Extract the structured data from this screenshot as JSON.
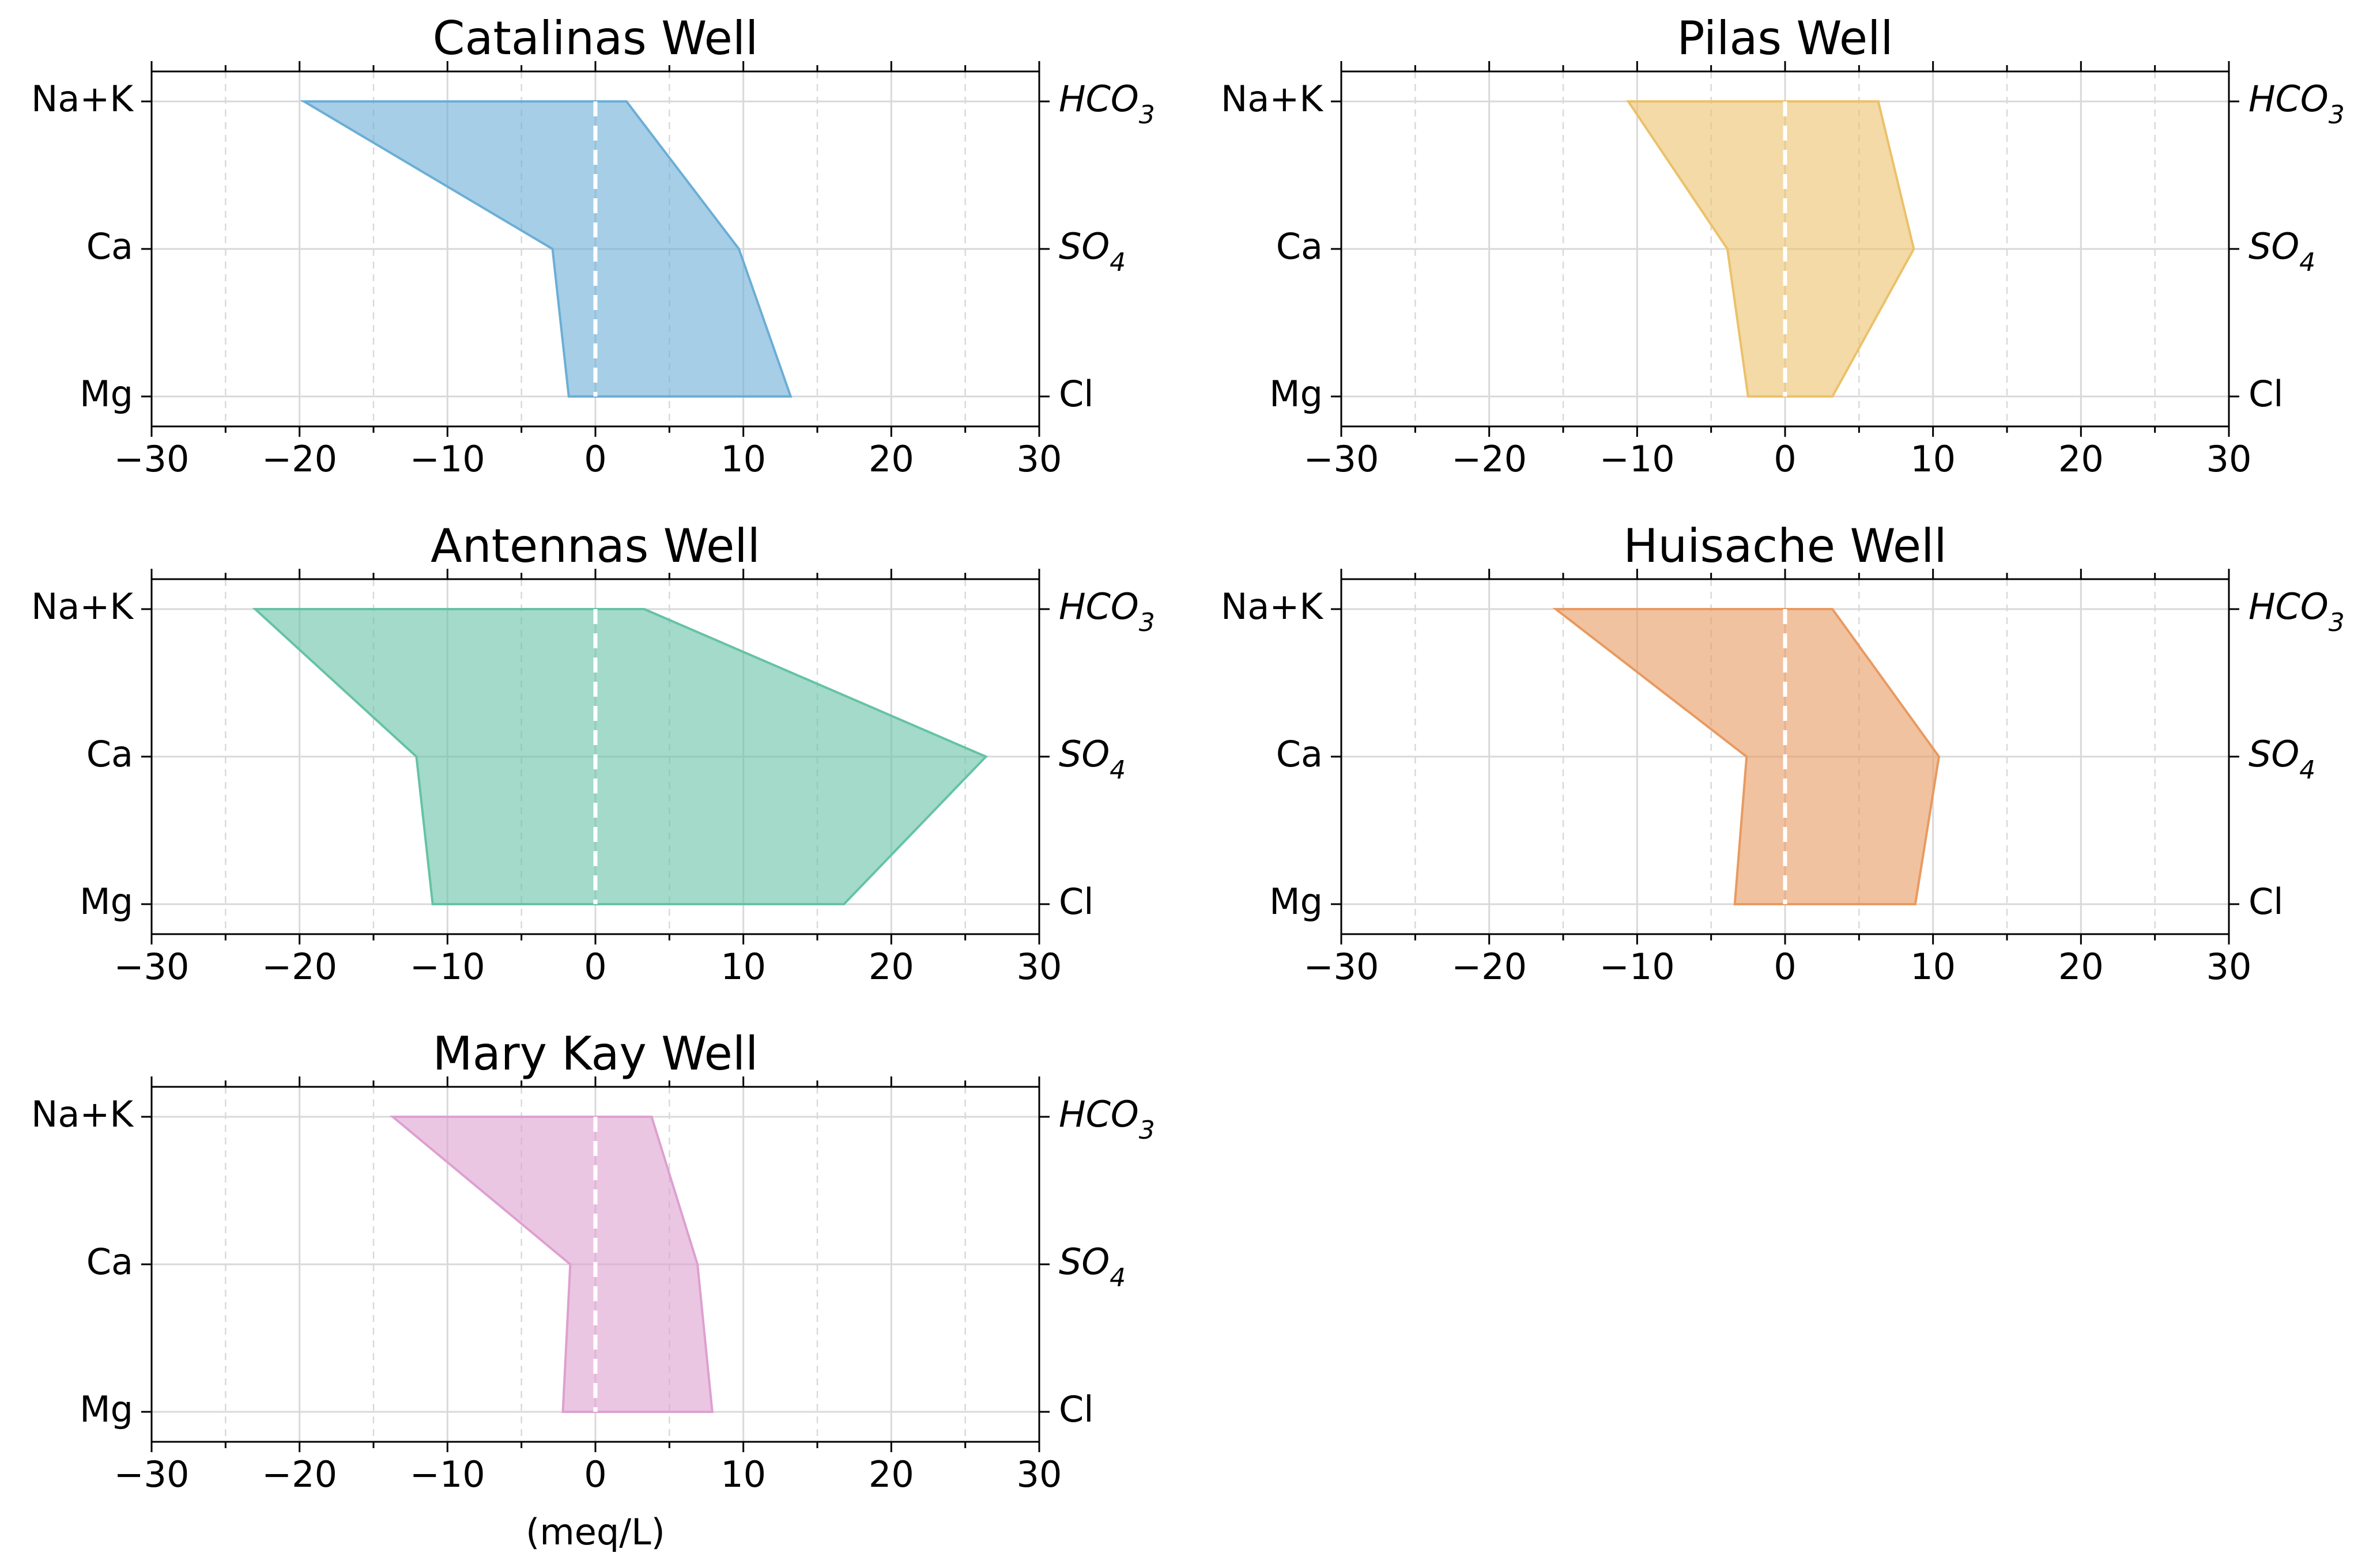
{
  "chart_data": [
    {
      "type": "area",
      "title": "Catalinas Well",
      "color": "#6baed6",
      "xlim": [
        -30,
        30
      ],
      "x_ticks": [
        -30,
        -20,
        -10,
        0,
        10,
        20,
        30
      ],
      "x_tick_labels": [
        "−30",
        "−20",
        "−10",
        "0",
        "10",
        "20",
        "30"
      ],
      "xlabel": "",
      "cations": [
        {
          "label": "Na+K",
          "value": -19.7
        },
        {
          "label": "Ca",
          "value": -2.9
        },
        {
          "label": "Mg",
          "value": -1.8
        }
      ],
      "anions": [
        {
          "label": "HCO3",
          "value": 2.1
        },
        {
          "label": "SO4",
          "value": 9.7
        },
        {
          "label": "Cl",
          "value": 13.2
        }
      ]
    },
    {
      "type": "area",
      "title": "Pilas Well",
      "color": "#ebc16a",
      "xlim": [
        -30,
        30
      ],
      "x_ticks": [
        -30,
        -20,
        -10,
        0,
        10,
        20,
        30
      ],
      "x_tick_labels": [
        "−30",
        "−20",
        "−10",
        "0",
        "10",
        "20",
        "30"
      ],
      "xlabel": "",
      "cations": [
        {
          "label": "Na+K",
          "value": -10.6
        },
        {
          "label": "Ca",
          "value": -3.9
        },
        {
          "label": "Mg",
          "value": -2.5
        }
      ],
      "anions": [
        {
          "label": "HCO3",
          "value": 6.3
        },
        {
          "label": "SO4",
          "value": 8.7
        },
        {
          "label": "Cl",
          "value": 3.2
        }
      ]
    },
    {
      "type": "area",
      "title": "Antennas Well",
      "color": "#66c2a5",
      "xlim": [
        -30,
        30
      ],
      "x_ticks": [
        -30,
        -20,
        -10,
        0,
        10,
        20,
        30
      ],
      "x_tick_labels": [
        "−30",
        "−20",
        "−10",
        "0",
        "10",
        "20",
        "30"
      ],
      "xlabel": "",
      "cations": [
        {
          "label": "Na+K",
          "value": -23.0
        },
        {
          "label": "Ca",
          "value": -12.1
        },
        {
          "label": "Mg",
          "value": -11.0
        }
      ],
      "anions": [
        {
          "label": "HCO3",
          "value": 3.3
        },
        {
          "label": "SO4",
          "value": 26.4
        },
        {
          "label": "Cl",
          "value": 16.8
        }
      ]
    },
    {
      "type": "area",
      "title": "Huisache Well",
      "color": "#e89a60",
      "xlim": [
        -30,
        30
      ],
      "x_ticks": [
        -30,
        -20,
        -10,
        0,
        10,
        20,
        30
      ],
      "x_tick_labels": [
        "−30",
        "−20",
        "−10",
        "0",
        "10",
        "20",
        "30"
      ],
      "xlabel": "",
      "cations": [
        {
          "label": "Na+K",
          "value": -15.5
        },
        {
          "label": "Ca",
          "value": -2.6
        },
        {
          "label": "Mg",
          "value": -3.4
        }
      ],
      "anions": [
        {
          "label": "HCO3",
          "value": 3.2
        },
        {
          "label": "SO4",
          "value": 10.4
        },
        {
          "label": "Cl",
          "value": 8.8
        }
      ]
    },
    {
      "type": "area",
      "title": "Mary Kay Well",
      "color": "#dda0d0",
      "xlim": [
        -30,
        30
      ],
      "x_ticks": [
        -30,
        -20,
        -10,
        0,
        10,
        20,
        30
      ],
      "x_tick_labels": [
        "−30",
        "−20",
        "−10",
        "0",
        "10",
        "20",
        "30"
      ],
      "xlabel": "(meq/L)",
      "cations": [
        {
          "label": "Na+K",
          "value": -13.7
        },
        {
          "label": "Ca",
          "value": -1.7
        },
        {
          "label": "Mg",
          "value": -2.2
        }
      ],
      "anions": [
        {
          "label": "HCO3",
          "value": 3.8
        },
        {
          "label": "SO4",
          "value": 6.9
        },
        {
          "label": "Cl",
          "value": 7.9
        }
      ]
    }
  ]
}
